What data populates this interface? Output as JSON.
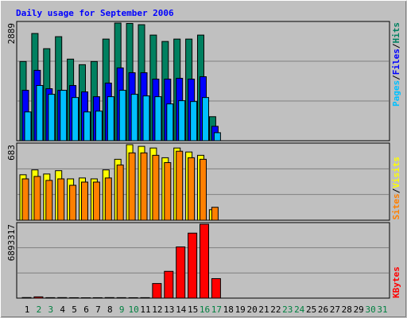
{
  "chart_data": {
    "type": "bar",
    "title": "Daily usage for September 2006",
    "categories": [
      "1",
      "2",
      "3",
      "4",
      "5",
      "6",
      "7",
      "8",
      "9",
      "10",
      "11",
      "12",
      "13",
      "14",
      "15",
      "16",
      "17",
      "18",
      "19",
      "20",
      "21",
      "22",
      "23",
      "24",
      "25",
      "26",
      "27",
      "28",
      "29",
      "30",
      "31"
    ],
    "category_colors": [
      "#000000",
      "#008040",
      "#008040",
      "#000000",
      "#000000",
      "#000000",
      "#000000",
      "#000000",
      "#008040",
      "#008040",
      "#000000",
      "#000000",
      "#000000",
      "#000000",
      "#000000",
      "#008040",
      "#008040",
      "#000000",
      "#000000",
      "#000000",
      "#000000",
      "#000000",
      "#008040",
      "#008040",
      "#000000",
      "#000000",
      "#000000",
      "#000000",
      "#000000",
      "#008040",
      "#008040"
    ],
    "legend_separator": "/",
    "panels": [
      {
        "ylim": [
          0,
          2889
        ],
        "yticks": [
          2889
        ],
        "series": [
          {
            "name": "Hits",
            "color": "#008060",
            "values": [
              1945,
              2633,
              2260,
              2555,
              2004,
              1867,
              1945,
              2496,
              2889,
              2880,
              2849,
              2594,
              2437,
              2496,
              2496,
              2594,
              590,
              0,
              0,
              0,
              0,
              0,
              0,
              0,
              0,
              0,
              0,
              0,
              0,
              0,
              0
            ]
          },
          {
            "name": "Files",
            "color": "#0000FF",
            "values": [
              1238,
              1729,
              1277,
              1238,
              1356,
              1199,
              1081,
              1415,
              1788,
              1670,
              1670,
              1513,
              1513,
              1533,
              1513,
              1572,
              354,
              0,
              0,
              0,
              0,
              0,
              0,
              0,
              0,
              0,
              0,
              0,
              0,
              0,
              0
            ]
          },
          {
            "name": "Pages",
            "color": "#00C0FF",
            "values": [
              707,
              1356,
              1140,
              1238,
              1061,
              707,
              727,
              1081,
              1238,
              1140,
              1100,
              1081,
              904,
              983,
              963,
              1061,
              197,
              0,
              0,
              0,
              0,
              0,
              0,
              0,
              0,
              0,
              0,
              0,
              0,
              0,
              0
            ]
          }
        ]
      },
      {
        "ylim": [
          0,
          683
        ],
        "yticks": [
          683
        ],
        "series": [
          {
            "name": "Visits",
            "color": "#FFFF00",
            "values": [
              411,
              455,
              418,
              448,
              374,
              382,
              374,
              455,
              551,
              683,
              668,
              653,
              565,
              653,
              617,
              587,
              95,
              0,
              0,
              0,
              0,
              0,
              0,
              0,
              0,
              0,
              0,
              0,
              0,
              0,
              0
            ]
          },
          {
            "name": "Sites",
            "color": "#FF8000",
            "values": [
              374,
              396,
              360,
              374,
              316,
              345,
              345,
              382,
              499,
              609,
              609,
              587,
              521,
              624,
              565,
              551,
              117,
              0,
              0,
              0,
              0,
              0,
              0,
              0,
              0,
              0,
              0,
              0,
              0,
              0,
              0
            ]
          }
        ]
      },
      {
        "ylim": [
          0,
          6893317
        ],
        "yticks": [
          6893317
        ],
        "series": [
          {
            "name": "KBytes",
            "color": "#FF0000",
            "values": [
              55000,
              120000,
              45000,
              50000,
              40000,
              35000,
              40000,
              50000,
              45000,
              40000,
              45000,
              1363518,
              2499783,
              4772313,
              6060080,
              6893317,
              1818024,
              0,
              0,
              0,
              0,
              0,
              0,
              0,
              0,
              0,
              0,
              0,
              0,
              0,
              0
            ]
          }
        ]
      }
    ]
  }
}
